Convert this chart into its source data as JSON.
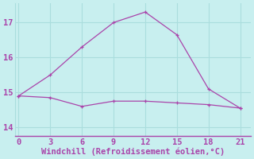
{
  "line1_x": [
    0,
    3,
    6,
    9,
    12,
    15,
    18,
    21
  ],
  "line1_y": [
    14.9,
    14.85,
    14.6,
    14.75,
    14.75,
    14.7,
    14.65,
    14.55
  ],
  "line2_x": [
    0,
    3,
    6,
    9,
    12,
    15,
    18,
    21
  ],
  "line2_y": [
    14.9,
    15.5,
    16.3,
    17.0,
    17.3,
    16.65,
    15.1,
    14.55
  ],
  "line_color": "#aa44aa",
  "bg_color": "#c8efef",
  "grid_color": "#aadddd",
  "spine_color": "#aa44aa",
  "xlabel": "Windchill (Refroidissement éolien,°C)",
  "xticks": [
    0,
    3,
    6,
    9,
    12,
    15,
    18,
    21
  ],
  "yticks": [
    14,
    15,
    16,
    17
  ],
  "xlim": [
    -0.3,
    22.0
  ],
  "ylim": [
    13.75,
    17.55
  ],
  "tick_fontsize": 7.5,
  "xlabel_fontsize": 7.5
}
